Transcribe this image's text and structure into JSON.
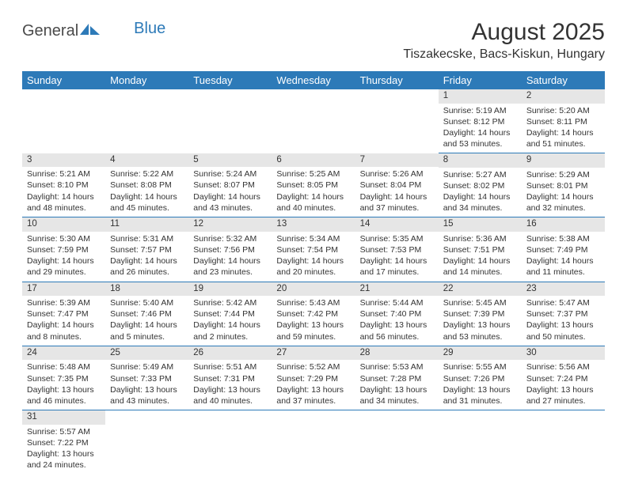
{
  "logo": {
    "part1": "General",
    "part2": "Blue"
  },
  "title": "August 2025",
  "location": "Tiszakecske, Bacs-Kiskun, Hungary",
  "colors": {
    "header_bg": "#2d7ab8",
    "header_text": "#ffffff",
    "daynum_bg": "#e6e6e6",
    "row_divider": "#2d7ab8",
    "body_text": "#333333",
    "logo_gray": "#4a4a4a",
    "logo_blue": "#2d7ab8",
    "page_bg": "#ffffff"
  },
  "typography": {
    "title_fontsize": 30,
    "location_fontsize": 16,
    "header_fontsize": 13,
    "cell_fontsize": 10.5,
    "daynum_fontsize": 11.5,
    "logo_fontsize": 20
  },
  "weekdays": [
    "Sunday",
    "Monday",
    "Tuesday",
    "Wednesday",
    "Thursday",
    "Friday",
    "Saturday"
  ],
  "weeks": [
    [
      null,
      null,
      null,
      null,
      null,
      {
        "n": "1",
        "sunrise": "Sunrise: 5:19 AM",
        "sunset": "Sunset: 8:12 PM",
        "daylight1": "Daylight: 14 hours",
        "daylight2": "and 53 minutes."
      },
      {
        "n": "2",
        "sunrise": "Sunrise: 5:20 AM",
        "sunset": "Sunset: 8:11 PM",
        "daylight1": "Daylight: 14 hours",
        "daylight2": "and 51 minutes."
      }
    ],
    [
      {
        "n": "3",
        "sunrise": "Sunrise: 5:21 AM",
        "sunset": "Sunset: 8:10 PM",
        "daylight1": "Daylight: 14 hours",
        "daylight2": "and 48 minutes."
      },
      {
        "n": "4",
        "sunrise": "Sunrise: 5:22 AM",
        "sunset": "Sunset: 8:08 PM",
        "daylight1": "Daylight: 14 hours",
        "daylight2": "and 45 minutes."
      },
      {
        "n": "5",
        "sunrise": "Sunrise: 5:24 AM",
        "sunset": "Sunset: 8:07 PM",
        "daylight1": "Daylight: 14 hours",
        "daylight2": "and 43 minutes."
      },
      {
        "n": "6",
        "sunrise": "Sunrise: 5:25 AM",
        "sunset": "Sunset: 8:05 PM",
        "daylight1": "Daylight: 14 hours",
        "daylight2": "and 40 minutes."
      },
      {
        "n": "7",
        "sunrise": "Sunrise: 5:26 AM",
        "sunset": "Sunset: 8:04 PM",
        "daylight1": "Daylight: 14 hours",
        "daylight2": "and 37 minutes."
      },
      {
        "n": "8",
        "sunrise": "Sunrise: 5:27 AM",
        "sunset": "Sunset: 8:02 PM",
        "daylight1": "Daylight: 14 hours",
        "daylight2": "and 34 minutes."
      },
      {
        "n": "9",
        "sunrise": "Sunrise: 5:29 AM",
        "sunset": "Sunset: 8:01 PM",
        "daylight1": "Daylight: 14 hours",
        "daylight2": "and 32 minutes."
      }
    ],
    [
      {
        "n": "10",
        "sunrise": "Sunrise: 5:30 AM",
        "sunset": "Sunset: 7:59 PM",
        "daylight1": "Daylight: 14 hours",
        "daylight2": "and 29 minutes."
      },
      {
        "n": "11",
        "sunrise": "Sunrise: 5:31 AM",
        "sunset": "Sunset: 7:57 PM",
        "daylight1": "Daylight: 14 hours",
        "daylight2": "and 26 minutes."
      },
      {
        "n": "12",
        "sunrise": "Sunrise: 5:32 AM",
        "sunset": "Sunset: 7:56 PM",
        "daylight1": "Daylight: 14 hours",
        "daylight2": "and 23 minutes."
      },
      {
        "n": "13",
        "sunrise": "Sunrise: 5:34 AM",
        "sunset": "Sunset: 7:54 PM",
        "daylight1": "Daylight: 14 hours",
        "daylight2": "and 20 minutes."
      },
      {
        "n": "14",
        "sunrise": "Sunrise: 5:35 AM",
        "sunset": "Sunset: 7:53 PM",
        "daylight1": "Daylight: 14 hours",
        "daylight2": "and 17 minutes."
      },
      {
        "n": "15",
        "sunrise": "Sunrise: 5:36 AM",
        "sunset": "Sunset: 7:51 PM",
        "daylight1": "Daylight: 14 hours",
        "daylight2": "and 14 minutes."
      },
      {
        "n": "16",
        "sunrise": "Sunrise: 5:38 AM",
        "sunset": "Sunset: 7:49 PM",
        "daylight1": "Daylight: 14 hours",
        "daylight2": "and 11 minutes."
      }
    ],
    [
      {
        "n": "17",
        "sunrise": "Sunrise: 5:39 AM",
        "sunset": "Sunset: 7:47 PM",
        "daylight1": "Daylight: 14 hours",
        "daylight2": "and 8 minutes."
      },
      {
        "n": "18",
        "sunrise": "Sunrise: 5:40 AM",
        "sunset": "Sunset: 7:46 PM",
        "daylight1": "Daylight: 14 hours",
        "daylight2": "and 5 minutes."
      },
      {
        "n": "19",
        "sunrise": "Sunrise: 5:42 AM",
        "sunset": "Sunset: 7:44 PM",
        "daylight1": "Daylight: 14 hours",
        "daylight2": "and 2 minutes."
      },
      {
        "n": "20",
        "sunrise": "Sunrise: 5:43 AM",
        "sunset": "Sunset: 7:42 PM",
        "daylight1": "Daylight: 13 hours",
        "daylight2": "and 59 minutes."
      },
      {
        "n": "21",
        "sunrise": "Sunrise: 5:44 AM",
        "sunset": "Sunset: 7:40 PM",
        "daylight1": "Daylight: 13 hours",
        "daylight2": "and 56 minutes."
      },
      {
        "n": "22",
        "sunrise": "Sunrise: 5:45 AM",
        "sunset": "Sunset: 7:39 PM",
        "daylight1": "Daylight: 13 hours",
        "daylight2": "and 53 minutes."
      },
      {
        "n": "23",
        "sunrise": "Sunrise: 5:47 AM",
        "sunset": "Sunset: 7:37 PM",
        "daylight1": "Daylight: 13 hours",
        "daylight2": "and 50 minutes."
      }
    ],
    [
      {
        "n": "24",
        "sunrise": "Sunrise: 5:48 AM",
        "sunset": "Sunset: 7:35 PM",
        "daylight1": "Daylight: 13 hours",
        "daylight2": "and 46 minutes."
      },
      {
        "n": "25",
        "sunrise": "Sunrise: 5:49 AM",
        "sunset": "Sunset: 7:33 PM",
        "daylight1": "Daylight: 13 hours",
        "daylight2": "and 43 minutes."
      },
      {
        "n": "26",
        "sunrise": "Sunrise: 5:51 AM",
        "sunset": "Sunset: 7:31 PM",
        "daylight1": "Daylight: 13 hours",
        "daylight2": "and 40 minutes."
      },
      {
        "n": "27",
        "sunrise": "Sunrise: 5:52 AM",
        "sunset": "Sunset: 7:29 PM",
        "daylight1": "Daylight: 13 hours",
        "daylight2": "and 37 minutes."
      },
      {
        "n": "28",
        "sunrise": "Sunrise: 5:53 AM",
        "sunset": "Sunset: 7:28 PM",
        "daylight1": "Daylight: 13 hours",
        "daylight2": "and 34 minutes."
      },
      {
        "n": "29",
        "sunrise": "Sunrise: 5:55 AM",
        "sunset": "Sunset: 7:26 PM",
        "daylight1": "Daylight: 13 hours",
        "daylight2": "and 31 minutes."
      },
      {
        "n": "30",
        "sunrise": "Sunrise: 5:56 AM",
        "sunset": "Sunset: 7:24 PM",
        "daylight1": "Daylight: 13 hours",
        "daylight2": "and 27 minutes."
      }
    ],
    [
      {
        "n": "31",
        "sunrise": "Sunrise: 5:57 AM",
        "sunset": "Sunset: 7:22 PM",
        "daylight1": "Daylight: 13 hours",
        "daylight2": "and 24 minutes."
      },
      null,
      null,
      null,
      null,
      null,
      null
    ]
  ]
}
